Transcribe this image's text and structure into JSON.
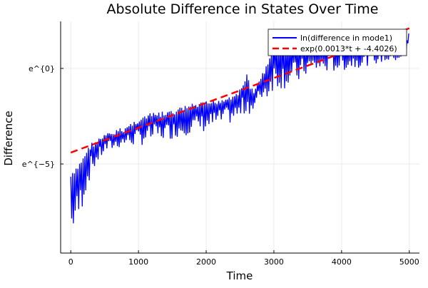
{
  "chart_data": {
    "type": "line",
    "title": "Absolute Difference in States Over Time",
    "xlabel": "Time",
    "ylabel": "Difference",
    "xlim": [
      -150,
      5150
    ],
    "ylim_ln": [
      -9.66,
      2.46
    ],
    "y_scale": "log (natural)",
    "grid": true,
    "legend_position": "top-right",
    "x_ticks": [
      {
        "value": 0,
        "label": "0"
      },
      {
        "value": 1000,
        "label": "1000"
      },
      {
        "value": 2000,
        "label": "2000"
      },
      {
        "value": 3000,
        "label": "3000"
      },
      {
        "value": 4000,
        "label": "4000"
      },
      {
        "value": 5000,
        "label": "5000"
      }
    ],
    "y_ticks": [
      {
        "value_ln": 0,
        "label": "e^{0}"
      },
      {
        "value_ln": -5,
        "label": "e^{−5}"
      }
    ],
    "series": [
      {
        "name": "ln(difference in mode1)",
        "color": "#0000ff",
        "style": "solid",
        "description_of_values": "oscillating signal; ln-value envelope",
        "t": [
          0,
          50,
          100,
          200,
          300,
          500,
          800,
          1000,
          1200,
          1500,
          1700,
          2000,
          2300,
          2500,
          2600,
          2700,
          2800,
          2900,
          3000,
          3300,
          3500,
          4000,
          4500,
          4950,
          5000
        ],
        "upper_ln": [
          -5.52,
          -5.37,
          -5.1,
          -4.44,
          -3.88,
          -3.43,
          -3.02,
          -2.57,
          -2.31,
          -2.2,
          -1.9,
          -1.72,
          -1.46,
          -1.08,
          -0.26,
          -1.27,
          -0.34,
          0.22,
          1.34,
          1.34,
          1.34,
          1.34,
          1.34,
          1.34,
          2.09
        ],
        "lower_ln": [
          -9.3,
          -8.36,
          -8.4,
          -6.87,
          -5.56,
          -4.44,
          -4.07,
          -4.07,
          -3.88,
          -3.69,
          -3.5,
          -3.32,
          -2.95,
          -2.76,
          -2.39,
          -2.39,
          -1.64,
          -1.64,
          -1.08,
          -1.08,
          -0.34,
          -0.15,
          0.22,
          0.41,
          1.34
        ]
      },
      {
        "name": "exp(0.0013*t + -4.4026)",
        "color": "#ff0000",
        "style": "dashed",
        "slope": 0.0013,
        "intercept": -4.4026
      }
    ]
  }
}
